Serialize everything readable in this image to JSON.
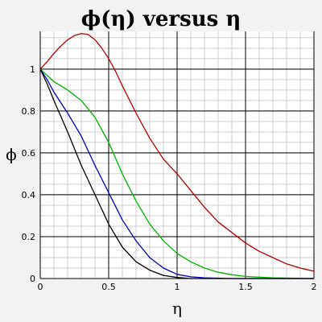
{
  "chart_data": {
    "type": "line",
    "title": "ϕ(η) versus η",
    "xlabel": "η",
    "ylabel": "ϕ",
    "xlim": [
      0,
      2
    ],
    "ylim": [
      0,
      1.18
    ],
    "x_ticks": [
      {
        "value": 0,
        "label": "0"
      },
      {
        "value": 0.5,
        "label": "0.5"
      },
      {
        "value": 1,
        "label": "1"
      },
      {
        "value": 1.5,
        "label": "1.5"
      },
      {
        "value": 2,
        "label": "2"
      }
    ],
    "y_ticks": [
      {
        "value": 0,
        "label": "0"
      },
      {
        "value": 0.2,
        "label": "0.2"
      },
      {
        "value": 0.4,
        "label": "0.4"
      },
      {
        "value": 0.6,
        "label": "0.6"
      },
      {
        "value": 0.8,
        "label": "0.8"
      },
      {
        "value": 1,
        "label": "1"
      }
    ],
    "grid": true,
    "minor_grid": true,
    "legend": "none",
    "series": [
      {
        "color": "#b00000",
        "points": [
          [
            0,
            1.0
          ],
          [
            0.05,
            1.035
          ],
          [
            0.1,
            1.075
          ],
          [
            0.15,
            1.11
          ],
          [
            0.2,
            1.14
          ],
          [
            0.25,
            1.16
          ],
          [
            0.3,
            1.17
          ],
          [
            0.35,
            1.165
          ],
          [
            0.4,
            1.14
          ],
          [
            0.45,
            1.1
          ],
          [
            0.5,
            1.05
          ],
          [
            0.55,
            0.99
          ],
          [
            0.6,
            0.92
          ],
          [
            0.7,
            0.79
          ],
          [
            0.8,
            0.67
          ],
          [
            0.9,
            0.57
          ],
          [
            1.0,
            0.5
          ],
          [
            1.1,
            0.42
          ],
          [
            1.2,
            0.34
          ],
          [
            1.3,
            0.27
          ],
          [
            1.4,
            0.22
          ],
          [
            1.5,
            0.17
          ],
          [
            1.6,
            0.13
          ],
          [
            1.7,
            0.1
          ],
          [
            1.8,
            0.07
          ],
          [
            1.9,
            0.05
          ],
          [
            2.0,
            0.035
          ]
        ]
      },
      {
        "color": "#00b000",
        "points": [
          [
            0,
            1.0
          ],
          [
            0.05,
            0.97
          ],
          [
            0.1,
            0.94
          ],
          [
            0.2,
            0.9
          ],
          [
            0.3,
            0.85
          ],
          [
            0.4,
            0.77
          ],
          [
            0.5,
            0.65
          ],
          [
            0.6,
            0.5
          ],
          [
            0.7,
            0.37
          ],
          [
            0.8,
            0.26
          ],
          [
            0.9,
            0.18
          ],
          [
            1.0,
            0.12
          ],
          [
            1.1,
            0.08
          ],
          [
            1.2,
            0.05
          ],
          [
            1.3,
            0.03
          ],
          [
            1.4,
            0.018
          ],
          [
            1.5,
            0.01
          ],
          [
            1.7,
            0.003
          ],
          [
            2.0,
            0.0
          ]
        ]
      },
      {
        "color": "#0000b0",
        "points": [
          [
            0,
            1.0
          ],
          [
            0.05,
            0.95
          ],
          [
            0.1,
            0.89
          ],
          [
            0.2,
            0.79
          ],
          [
            0.3,
            0.68
          ],
          [
            0.4,
            0.54
          ],
          [
            0.5,
            0.41
          ],
          [
            0.6,
            0.28
          ],
          [
            0.7,
            0.18
          ],
          [
            0.8,
            0.1
          ],
          [
            0.9,
            0.05
          ],
          [
            1.0,
            0.02
          ],
          [
            1.1,
            0.008
          ],
          [
            1.2,
            0.003
          ],
          [
            1.4,
            0.0
          ],
          [
            2.0,
            0.0
          ]
        ]
      },
      {
        "color": "#000000",
        "points": [
          [
            0,
            1.0
          ],
          [
            0.05,
            0.93
          ],
          [
            0.1,
            0.85
          ],
          [
            0.2,
            0.7
          ],
          [
            0.3,
            0.54
          ],
          [
            0.4,
            0.4
          ],
          [
            0.5,
            0.26
          ],
          [
            0.6,
            0.15
          ],
          [
            0.7,
            0.08
          ],
          [
            0.8,
            0.04
          ],
          [
            0.9,
            0.015
          ],
          [
            1.0,
            0.005
          ],
          [
            1.1,
            0.0
          ],
          [
            2.0,
            0.0
          ]
        ]
      }
    ]
  }
}
